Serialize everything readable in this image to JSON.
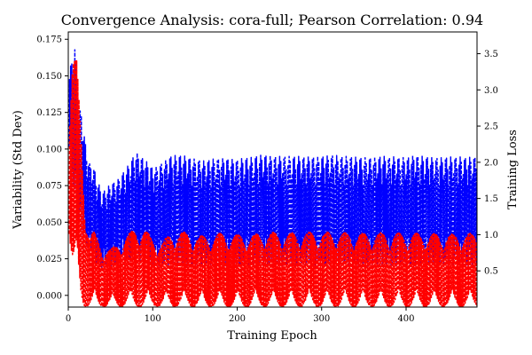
{
  "chart_data": {
    "type": "line",
    "title": "Convergence Analysis: cora-full; Pearson Correlation: 0.94",
    "xlabel": "Training Epoch",
    "ylabel": "Variability (Std Dev)",
    "y2label": "Training Loss",
    "xlim": [
      0,
      484
    ],
    "ylim": [
      -0.008,
      0.18
    ],
    "y2lim": [
      0.0,
      3.8
    ],
    "xticks": [
      0,
      100,
      200,
      300,
      400
    ],
    "yticks": [
      0.0,
      0.025,
      0.05,
      0.075,
      0.1,
      0.125,
      0.15,
      0.175
    ],
    "ytick_labels": [
      "0.000",
      "0.025",
      "0.050",
      "0.075",
      "0.100",
      "0.125",
      "0.150",
      "0.175"
    ],
    "y2ticks": [
      0.5,
      1.0,
      1.5,
      2.0,
      2.5,
      3.0,
      3.5
    ],
    "y2tick_labels": [
      "0.5",
      "1.0",
      "1.5",
      "2.0",
      "2.5",
      "3.0",
      "3.5"
    ],
    "grid": false,
    "series": [
      {
        "axis": "left",
        "color": "#0000ff",
        "style": "dashed",
        "envelope": {
          "x": [
            1,
            5,
            8,
            12,
            16,
            20,
            25,
            30,
            35,
            40,
            50,
            60,
            70,
            80,
            90,
            100,
            110,
            120,
            130,
            140,
            150,
            160,
            170,
            180,
            200,
            220,
            230,
            250,
            270,
            300,
            310,
            330,
            350,
            370,
            380,
            400,
            410,
            420,
            440,
            460,
            470,
            484
          ],
          "upper": [
            0.15,
            0.165,
            0.171,
            0.125,
            0.127,
            0.105,
            0.09,
            0.088,
            0.078,
            0.07,
            0.076,
            0.08,
            0.088,
            0.098,
            0.093,
            0.087,
            0.09,
            0.095,
            0.096,
            0.095,
            0.093,
            0.092,
            0.093,
            0.094,
            0.093,
            0.095,
            0.096,
            0.095,
            0.095,
            0.095,
            0.096,
            0.095,
            0.094,
            0.095,
            0.095,
            0.094,
            0.096,
            0.095,
            0.094,
            0.095,
            0.094,
            0.095
          ],
          "lower": [
            0.1,
            0.08,
            0.06,
            0.05,
            0.04,
            0.035,
            0.03,
            0.025,
            0.02,
            0.018,
            0.02,
            0.022,
            0.023,
            0.024,
            0.022,
            0.02,
            0.02,
            0.021,
            0.021,
            0.02,
            0.02,
            0.02,
            0.02,
            0.02,
            0.02,
            0.02,
            0.02,
            0.02,
            0.02,
            0.02,
            0.02,
            0.02,
            0.02,
            0.02,
            0.02,
            0.02,
            0.02,
            0.02,
            0.02,
            0.02,
            0.02,
            0.02
          ]
        }
      },
      {
        "axis": "right",
        "color": "#ff0000",
        "style": "dashed",
        "envelope": {
          "x": [
            1,
            5,
            10,
            15,
            20,
            25,
            30,
            40,
            50,
            60,
            70,
            80,
            90,
            100,
            110,
            120,
            130,
            140,
            150,
            160,
            180,
            200,
            220,
            230,
            250,
            270,
            300,
            320,
            350,
            370,
            400,
            420,
            450,
            484
          ],
          "upper": [
            2.6,
            3.5,
            3.4,
            2.5,
            1.4,
            1.0,
            1.05,
            0.85,
            0.8,
            0.9,
            1.0,
            1.1,
            1.08,
            0.95,
            0.9,
            1.0,
            1.05,
            1.03,
            1.0,
            0.98,
            1.02,
            1.0,
            1.0,
            1.04,
            1.03,
            1.03,
            1.04,
            1.03,
            1.02,
            1.03,
            1.02,
            1.02,
            1.01,
            1.02
          ],
          "lower": [
            1.0,
            0.5,
            0.2,
            0.05,
            0.0,
            0.0,
            0.0,
            0.0,
            0.0,
            0.0,
            0.0,
            0.0,
            0.0,
            0.0,
            0.0,
            0.0,
            0.0,
            0.0,
            0.0,
            0.0,
            0.0,
            0.0,
            0.0,
            0.0,
            0.0,
            0.0,
            0.0,
            0.0,
            0.0,
            0.0,
            0.0,
            0.0,
            0.0,
            0.0
          ]
        }
      }
    ]
  }
}
